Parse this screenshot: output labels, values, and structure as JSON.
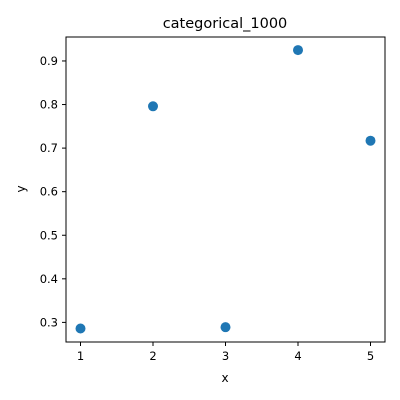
{
  "chart_data": {
    "type": "scatter",
    "title": "categorical_1000",
    "xlabel": "x",
    "ylabel": "y",
    "xlim": [
      0.8,
      5.2
    ],
    "ylim": [
      0.255,
      0.955
    ],
    "xticks": [
      1,
      2,
      3,
      4,
      5
    ],
    "yticks": [
      0.3,
      0.4,
      0.5,
      0.6,
      0.7,
      0.8,
      0.9
    ],
    "grid": false,
    "points": [
      {
        "x": 1,
        "y": 0.286
      },
      {
        "x": 2,
        "y": 0.796
      },
      {
        "x": 3,
        "y": 0.289
      },
      {
        "x": 4,
        "y": 0.925
      },
      {
        "x": 5,
        "y": 0.717
      }
    ],
    "colors": {
      "marker": "#1f77b4"
    }
  }
}
